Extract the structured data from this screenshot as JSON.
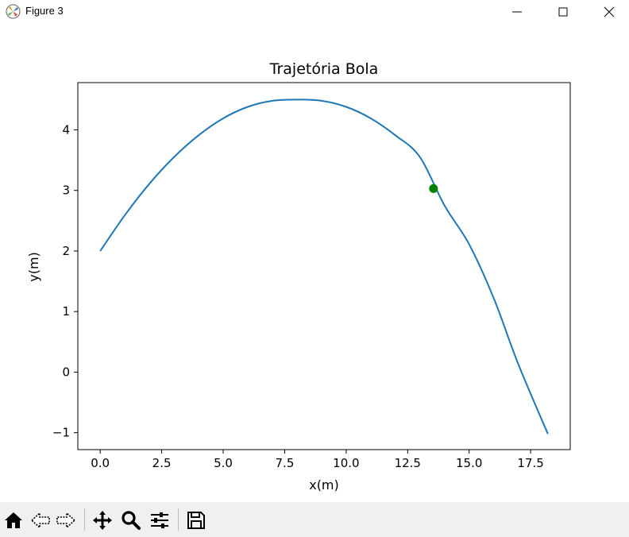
{
  "window": {
    "title": "Figure 3",
    "icons": [
      "matplotlib-icon",
      "minimize-icon",
      "maximize-icon",
      "close-icon"
    ]
  },
  "toolbar": {
    "icons": [
      "home-icon",
      "back-icon",
      "forward-icon",
      "pan-icon",
      "zoom-icon",
      "configure-subplots-icon",
      "save-icon"
    ]
  },
  "chart_data": {
    "type": "line",
    "title": "Trajetória Bola",
    "xlabel": "x(m)",
    "ylabel": "y(m)",
    "xlim": [
      -0.91,
      19.11
    ],
    "ylim": [
      -1.28,
      4.78
    ],
    "xticks": [
      0.0,
      2.5,
      5.0,
      7.5,
      10.0,
      12.5,
      15.0,
      17.5
    ],
    "xtick_labels": [
      "0.0",
      "2.5",
      "5.0",
      "7.5",
      "10.0",
      "12.5",
      "15.0",
      "17.5"
    ],
    "yticks": [
      -1,
      0,
      1,
      2,
      3,
      4
    ],
    "ytick_labels": [
      "−1",
      "0",
      "1",
      "2",
      "3",
      "4"
    ],
    "grid": false,
    "series": [
      {
        "color": "#1f77b4",
        "x": [
          0,
          1,
          2,
          3,
          4,
          5,
          6,
          7,
          8,
          9,
          10,
          11,
          12,
          13,
          14,
          15,
          16,
          17,
          18.2
        ],
        "y": [
          2.0,
          2.59,
          3.11,
          3.55,
          3.91,
          4.19,
          4.38,
          4.48,
          4.5,
          4.48,
          4.38,
          4.19,
          3.91,
          3.55,
          2.75,
          2.11,
          1.22,
          0.13,
          -1.02
        ]
      }
    ],
    "markers": [
      {
        "x": 13.55,
        "y": 3.03,
        "color": "#008000"
      }
    ]
  }
}
